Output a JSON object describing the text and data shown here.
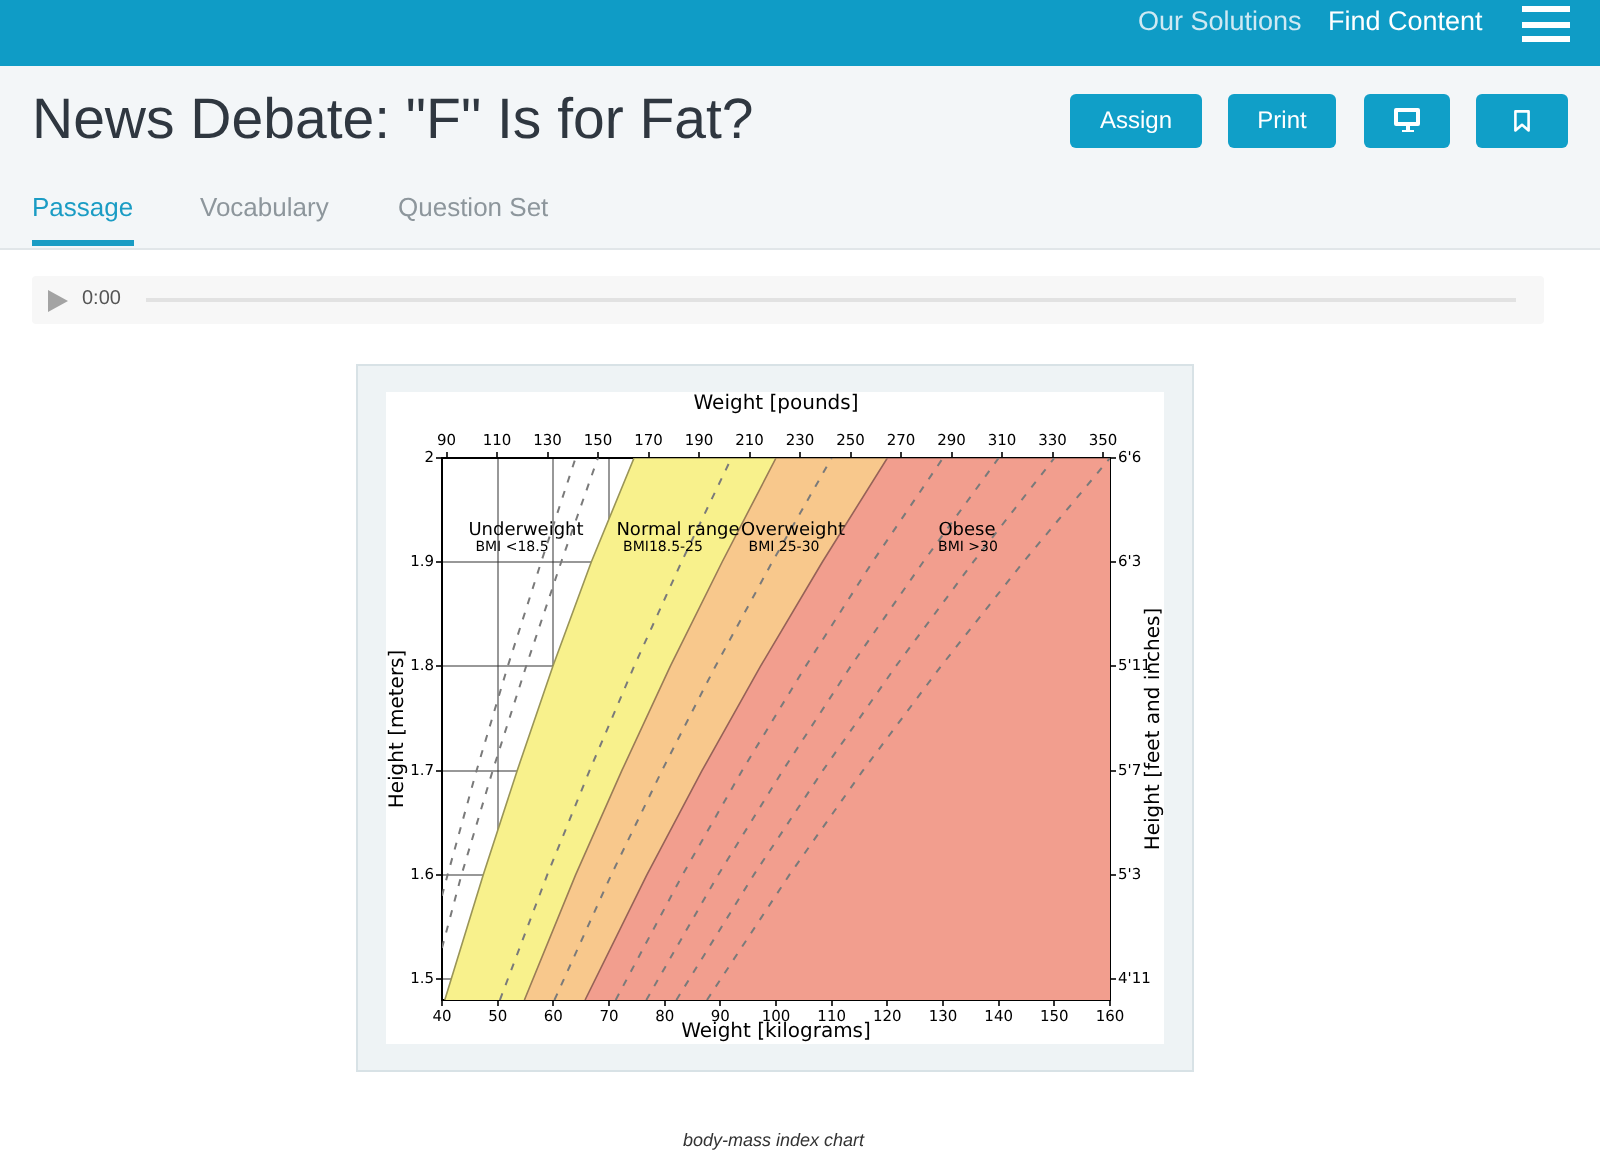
{
  "chart_data": {
    "type": "area",
    "title": "News Debate: \"F\" Is for Fat?",
    "xlabel": "Weight [kilograms]",
    "x2label": "Weight [pounds]",
    "ylabel": "Height [meters]",
    "y2label": "Height [feet and inches]",
    "xlim": [
      40,
      160
    ],
    "xticks": [
      40,
      50,
      60,
      70,
      80,
      90,
      100,
      110,
      120,
      130,
      140,
      150,
      160
    ],
    "x2lim": [
      88.18,
      352.74
    ],
    "x2ticks": [
      90,
      110,
      130,
      150,
      170,
      190,
      210,
      230,
      250,
      270,
      290,
      310,
      330,
      350
    ],
    "ylim": [
      1.48,
      2
    ],
    "yticks": [
      1.5,
      1.6,
      1.7,
      1.8,
      1.9,
      2
    ],
    "y2_categories": [
      "6'6",
      "6'3",
      "5'11",
      "5'7",
      "5'3",
      "4'11"
    ],
    "grid": true,
    "series": [
      {
        "type": "area",
        "color": "#f8f18c",
        "x": [
          40.5,
          47.4,
          53.5,
          59.9,
          66.8,
          74.5,
          160
        ],
        "values": [
          1.48,
          1.6,
          1.7,
          1.8,
          1.9,
          2,
          2
        ]
      },
      {
        "type": "area",
        "color": "#f8c88c",
        "x": [
          54.8,
          64,
          72.3,
          81,
          90.3,
          100,
          160
        ],
        "values": [
          1.48,
          1.6,
          1.7,
          1.8,
          1.9,
          2,
          2
        ]
      },
      {
        "type": "area",
        "color": "#f29e8e",
        "x": [
          65.7,
          76.8,
          86.7,
          97.2,
          108.3,
          120,
          160
        ],
        "values": [
          1.48,
          1.6,
          1.7,
          1.8,
          1.9,
          2,
          2
        ]
      },
      {
        "type": "line",
        "color": "#7a7a7a",
        "line_style": "dashed",
        "x": [
          40,
          41,
          46.2,
          51.8,
          57.8,
          64
        ],
        "values": [
          1.58,
          1.6,
          1.7,
          1.8,
          1.9,
          2
        ]
      },
      {
        "type": "line",
        "color": "#7a7a7a",
        "line_style": "dashed",
        "x": [
          40,
          43.5,
          49.1,
          55.1,
          61.4,
          68
        ],
        "values": [
          1.53,
          1.6,
          1.7,
          1.8,
          1.9,
          2
        ]
      },
      {
        "type": "line",
        "color": "#7a7a7a",
        "line_style": "dashed",
        "x": [
          50.4,
          58.9,
          66.5,
          74.5,
          83,
          92
        ],
        "values": [
          1.48,
          1.6,
          1.7,
          1.8,
          1.9,
          2
        ]
      },
      {
        "type": "line",
        "color": "#7a7a7a",
        "line_style": "dashed",
        "x": [
          60.2,
          70.4,
          79.5,
          89.1,
          99.3,
          110
        ],
        "values": [
          1.48,
          1.6,
          1.7,
          1.8,
          1.9,
          2
        ]
      },
      {
        "type": "line",
        "color": "#7a7a7a",
        "line_style": "dashed",
        "x": [
          71.2,
          83.2,
          93.9,
          105.3,
          117.3,
          130
        ],
        "values": [
          1.48,
          1.6,
          1.7,
          1.8,
          1.9,
          2
        ]
      },
      {
        "type": "line",
        "color": "#7a7a7a",
        "line_style": "dashed",
        "x": [
          76.7,
          89.6,
          101.2,
          113.4,
          126.4,
          140
        ],
        "values": [
          1.48,
          1.6,
          1.7,
          1.8,
          1.9,
          2
        ]
      },
      {
        "type": "line",
        "color": "#7a7a7a",
        "line_style": "dashed",
        "x": [
          82.1,
          96,
          108.4,
          121.5,
          135.4,
          150
        ],
        "values": [
          1.48,
          1.6,
          1.7,
          1.8,
          1.9,
          2
        ]
      },
      {
        "type": "line",
        "color": "#7a7a7a",
        "line_style": "dashed",
        "x": [
          87.6,
          102.4,
          115.6,
          129.6,
          144.4,
          160
        ],
        "values": [
          1.48,
          1.6,
          1.7,
          1.8,
          1.9,
          2
        ]
      }
    ],
    "annotations": [
      "Underweight",
      "BMI <18.5",
      "Normal range",
      "BMI18.5-25",
      "Overweight",
      "BMI 25-30",
      "Obese",
      "BMI >30",
      "Our Solutions",
      "Find Content",
      "Assign",
      "Print",
      "Passage",
      "Vocabulary",
      "Question Set",
      "0:00",
      "body-mass index chart"
    ]
  }
}
